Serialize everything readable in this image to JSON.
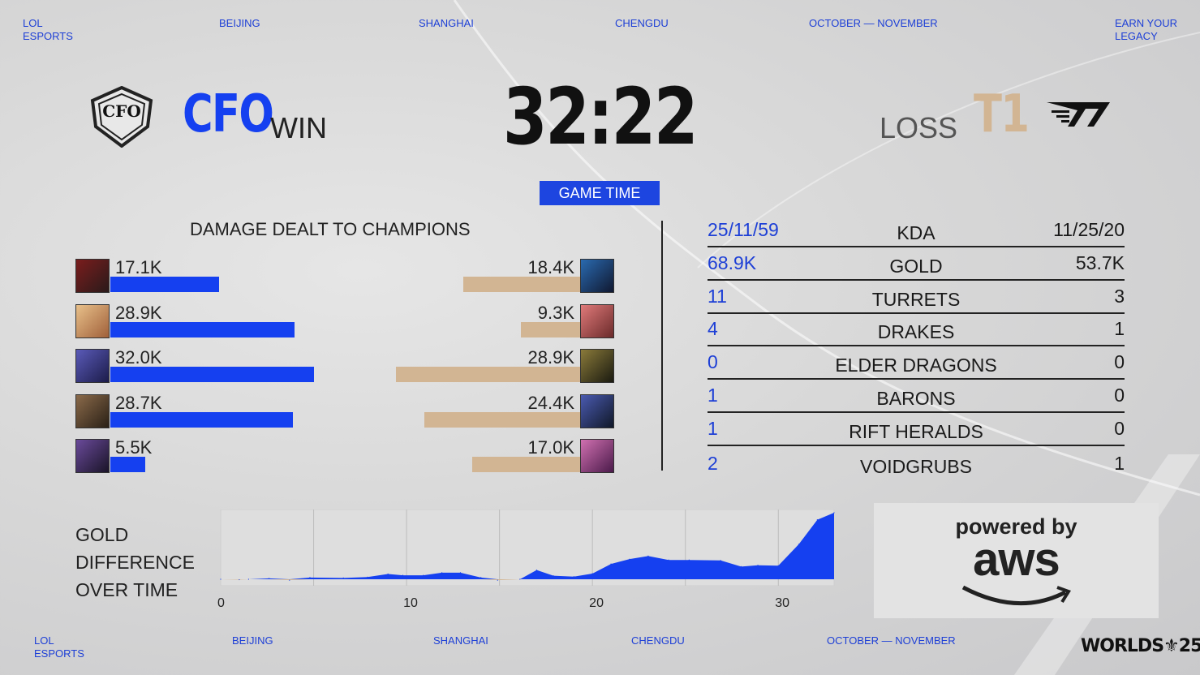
{
  "nav_top": [
    "LOL\nESPORTS",
    "BEIJING",
    "SHANGHAI",
    "CHENGDU",
    "OCTOBER — NOVEMBER",
    "EARN YOUR\nLEGACY"
  ],
  "nav_bottom": [
    "LOL\nESPORTS",
    "BEIJING",
    "SHANGHAI",
    "CHENGDU",
    "OCTOBER — NOVEMBER"
  ],
  "teams": {
    "left": {
      "logo_text": "CFO",
      "name": "CFO",
      "result": "WIN",
      "color": "#1540f0"
    },
    "right": {
      "logo_text": "T1",
      "name": "T1",
      "result": "LOSS",
      "color": "#d2b593"
    }
  },
  "game": {
    "time": "32:22",
    "label": "GAME TIME"
  },
  "damage": {
    "title": "DAMAGE DEALT TO CHAMPIONS",
    "left": [
      {
        "label": "17.1K",
        "value": 17.1,
        "portrait": [
          "#7a1d1d",
          "#2a1a1a"
        ]
      },
      {
        "label": "28.9K",
        "value": 28.9,
        "portrait": [
          "#e8c08a",
          "#a0603a"
        ]
      },
      {
        "label": "32.0K",
        "value": 32.0,
        "portrait": [
          "#5a5ab8",
          "#1c1c4a"
        ]
      },
      {
        "label": "28.7K",
        "value": 28.7,
        "portrait": [
          "#8a6a4a",
          "#2a2016"
        ]
      },
      {
        "label": "5.5K",
        "value": 5.5,
        "portrait": [
          "#6a4a9a",
          "#1a1428"
        ]
      }
    ],
    "right": [
      {
        "label": "18.4K",
        "value": 18.4,
        "portrait": [
          "#2a6ab0",
          "#101830"
        ]
      },
      {
        "label": "9.3K",
        "value": 9.3,
        "portrait": [
          "#e07a7a",
          "#6a2a2a"
        ]
      },
      {
        "label": "28.9K",
        "value": 28.9,
        "portrait": [
          "#8a7a3a",
          "#1a1a10"
        ]
      },
      {
        "label": "24.4K",
        "value": 24.4,
        "portrait": [
          "#4a5ab0",
          "#101828"
        ]
      },
      {
        "label": "17.0K",
        "value": 17.0,
        "portrait": [
          "#d070b0",
          "#4a1a4a"
        ]
      }
    ]
  },
  "stats": [
    {
      "left": "25/11/59",
      "label": "KDA",
      "right": "11/25/20"
    },
    {
      "left": "68.9K",
      "label": "GOLD",
      "right": "53.7K"
    },
    {
      "left": "11",
      "label": "TURRETS",
      "right": "3"
    },
    {
      "left": "4",
      "label": "DRAKES",
      "right": "1"
    },
    {
      "left": "0",
      "label": "ELDER DRAGONS",
      "right": "0"
    },
    {
      "left": "1",
      "label": "BARONS",
      "right": "0"
    },
    {
      "left": "1",
      "label": "RIFT HERALDS",
      "right": "0"
    },
    {
      "left": "2",
      "label": "VOIDGRUBS",
      "right": "1"
    }
  ],
  "chart_data": {
    "type": "area",
    "title": "GOLD\nDIFFERENCE\nOVER TIME",
    "x_ticks": [
      "0",
      "10",
      "20",
      "30"
    ],
    "xlim": [
      0,
      33
    ],
    "grid": true,
    "colors": {
      "positive": "#1540f0",
      "negative": "#d2b593"
    },
    "x": [
      0,
      1,
      1.5,
      2.6,
      3.7,
      4.8,
      6.6,
      7.9,
      9,
      9.8,
      10.9,
      11.9,
      12.9,
      14,
      14.9,
      16.1,
      17,
      17.9,
      19,
      20,
      21,
      22,
      23,
      24.1,
      25.2,
      26.9,
      28,
      28.9,
      30,
      31.1,
      32.1,
      33
    ],
    "y": [
      0,
      -0.1,
      0,
      0.2,
      -0.2,
      0.4,
      0.3,
      0.5,
      1.2,
      0.9,
      0.9,
      1.5,
      1.5,
      0.4,
      -0.2,
      0,
      2.1,
      0.8,
      0.6,
      1.3,
      3.5,
      4.6,
      5.3,
      4.4,
      4.4,
      4.3,
      2.9,
      3.2,
      3.1,
      8.0,
      13.6,
      15.2
    ],
    "ylim": [
      -0.5,
      15.2
    ]
  },
  "sponsor": {
    "line1": "powered by",
    "line2": "aws"
  },
  "event_logo": "WORLDS 25"
}
